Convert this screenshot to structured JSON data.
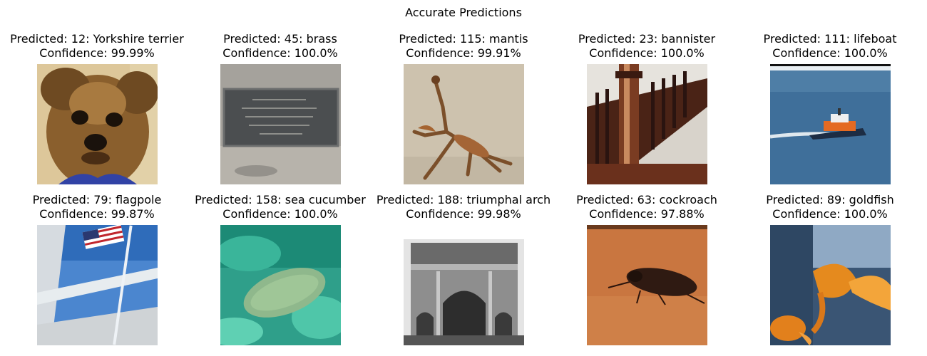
{
  "figure": {
    "title": "Accurate Predictions"
  },
  "predictions": [
    {
      "predicted": "Predicted: 12: Yorkshire terrier",
      "confidence": "Confidence: 99.99%"
    },
    {
      "predicted": "Predicted: 45: brass",
      "confidence": "Confidence: 100.0%"
    },
    {
      "predicted": "Predicted: 115: mantis",
      "confidence": "Confidence: 99.91%"
    },
    {
      "predicted": "Predicted: 23: bannister",
      "confidence": "Confidence: 100.0%"
    },
    {
      "predicted": "Predicted: 111: lifeboat",
      "confidence": "Confidence: 100.0%"
    },
    {
      "predicted": "Predicted: 79: flagpole",
      "confidence": "Confidence: 99.87%"
    },
    {
      "predicted": "Predicted: 158: sea cucumber",
      "confidence": "Confidence: 100.0%"
    },
    {
      "predicted": "Predicted: 188: triumphal arch",
      "confidence": "Confidence: 99.98%"
    },
    {
      "predicted": "Predicted: 63: cockroach",
      "confidence": "Confidence: 97.88%"
    },
    {
      "predicted": "Predicted: 89: goldfish",
      "confidence": "Confidence: 100.0%"
    }
  ]
}
